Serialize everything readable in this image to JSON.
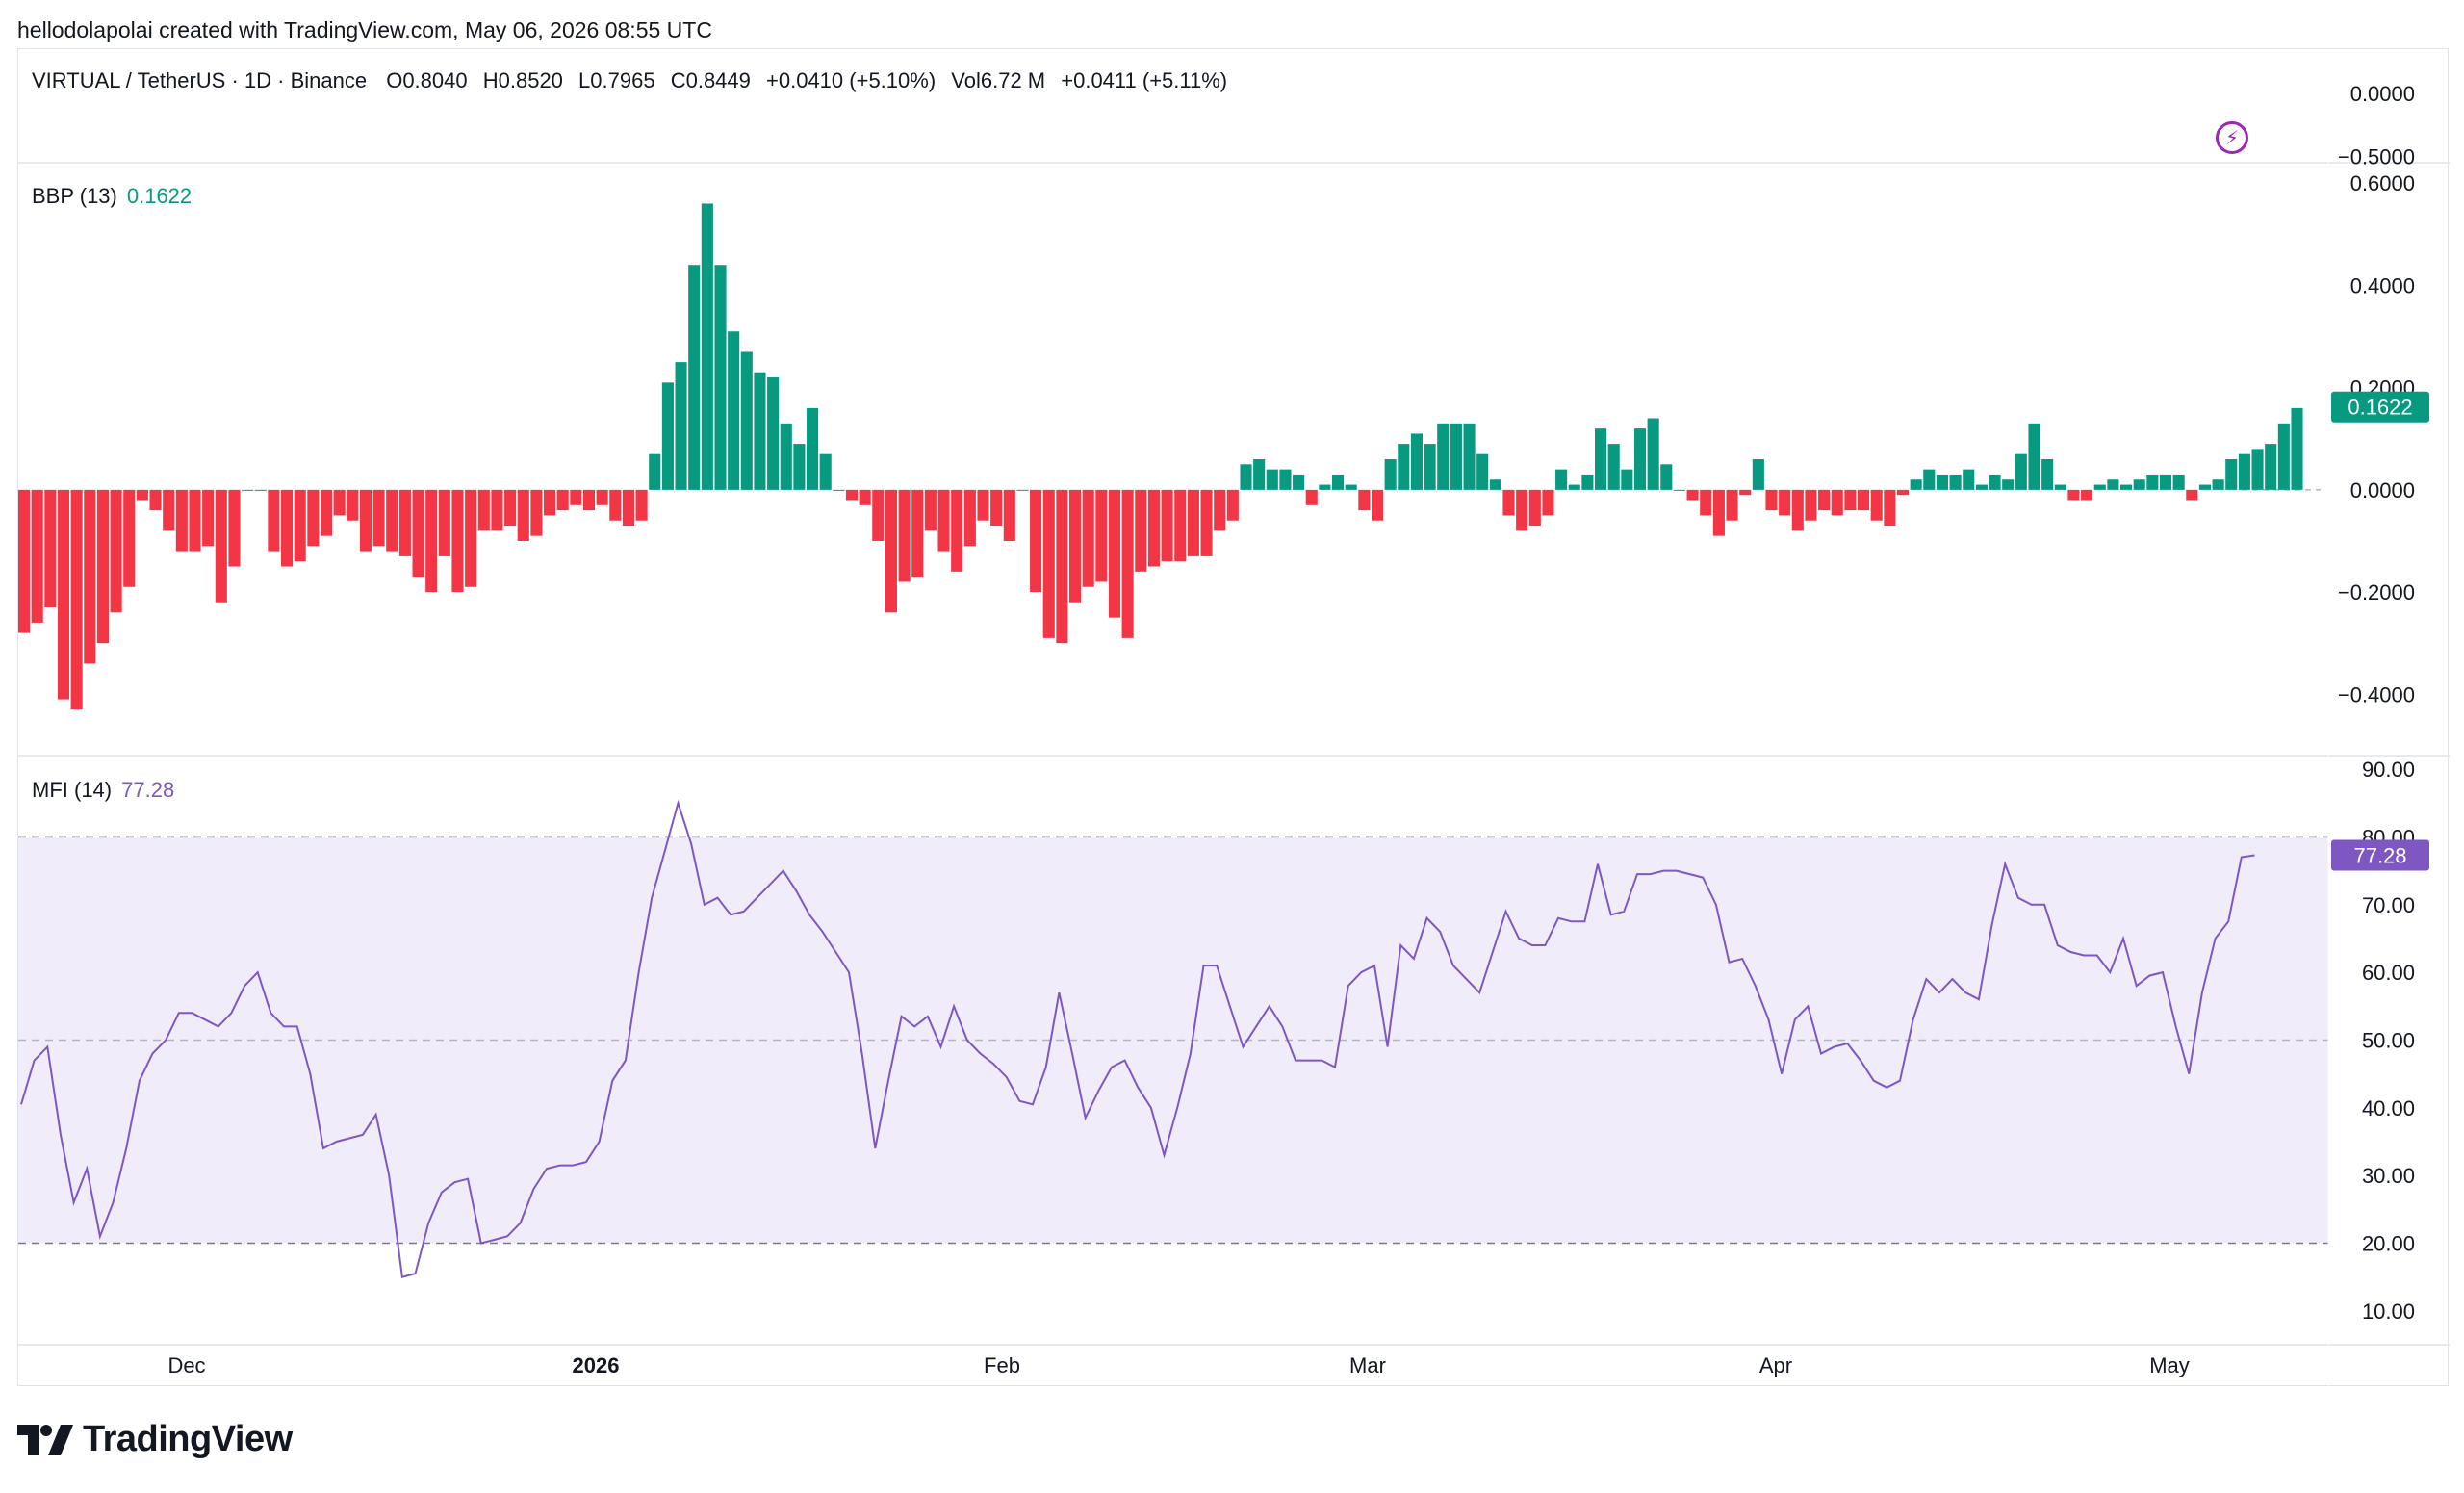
{
  "attribution": "hellodolapolai created with TradingView.com, May 06, 2026 08:55 UTC",
  "brand": "TradingView",
  "header": {
    "symbol": "VIRTUAL / TetherUS · 1D · Binance",
    "open": "O0.8040",
    "high": "H0.8520",
    "low": "L0.7965",
    "close": "C0.8449",
    "change": "+0.0410 (+5.10%)",
    "volume": "Vol6.72 M",
    "vol_change": "+0.0411 (+5.11%)"
  },
  "colors": {
    "up": "#089981",
    "down": "#f23645",
    "mfi_line": "#7e57c2",
    "mfi_band": "#f0ecf9",
    "grid_dash": "#b2b5be",
    "text": "#131722",
    "accent_purple": "#9c27b0"
  },
  "chart_data": [
    {
      "type": "line",
      "pane": "price",
      "title": "VIRTUAL / TetherUS · 1D · Binance",
      "y_ticks": [
        "0.0000",
        "−0.5000"
      ],
      "ylim": [
        -0.55,
        0.35
      ]
    },
    {
      "type": "bar",
      "pane": "BBP",
      "title": "BBP (13)",
      "last_value": "0.1622",
      "last_value_label": "0.1622",
      "y_ticks": [
        "0.6000",
        "0.4000",
        "0.2000",
        "0.0000",
        "−0.2000",
        "−0.4000"
      ],
      "ylim": [
        -0.52,
        0.64
      ],
      "values": [
        -0.28,
        -0.26,
        -0.23,
        -0.41,
        -0.43,
        -0.34,
        -0.3,
        -0.24,
        -0.19,
        -0.02,
        -0.04,
        -0.08,
        -0.12,
        -0.12,
        -0.11,
        -0.22,
        -0.15,
        0.0,
        0.0,
        -0.12,
        -0.15,
        -0.14,
        -0.11,
        -0.09,
        -0.05,
        -0.06,
        -0.12,
        -0.11,
        -0.12,
        -0.13,
        -0.17,
        -0.2,
        -0.13,
        -0.2,
        -0.19,
        -0.08,
        -0.08,
        -0.07,
        -0.1,
        -0.09,
        -0.05,
        -0.04,
        -0.03,
        -0.04,
        -0.03,
        -0.06,
        -0.07,
        -0.06,
        0.07,
        0.21,
        0.25,
        0.44,
        0.56,
        0.44,
        0.31,
        0.27,
        0.23,
        0.22,
        0.13,
        0.09,
        0.16,
        0.07,
        0.0,
        -0.02,
        -0.03,
        -0.1,
        -0.24,
        -0.18,
        -0.17,
        -0.08,
        -0.12,
        -0.16,
        -0.11,
        -0.06,
        -0.07,
        -0.1,
        0.0,
        -0.2,
        -0.29,
        -0.3,
        -0.22,
        -0.19,
        -0.18,
        -0.25,
        -0.29,
        -0.16,
        -0.15,
        -0.14,
        -0.14,
        -0.13,
        -0.13,
        -0.08,
        -0.06,
        0.05,
        0.06,
        0.04,
        0.04,
        0.03,
        -0.03,
        0.01,
        0.03,
        0.01,
        -0.04,
        -0.06,
        0.06,
        0.09,
        0.11,
        0.09,
        0.13,
        0.13,
        0.13,
        0.07,
        0.02,
        -0.05,
        -0.08,
        -0.07,
        -0.05,
        0.04,
        0.01,
        0.03,
        0.12,
        0.09,
        0.04,
        0.12,
        0.14,
        0.05,
        0.0,
        -0.02,
        -0.05,
        -0.09,
        -0.06,
        -0.01,
        0.06,
        -0.04,
        -0.05,
        -0.08,
        -0.06,
        -0.04,
        -0.05,
        -0.04,
        -0.04,
        -0.06,
        -0.07,
        -0.01,
        0.02,
        0.04,
        0.03,
        0.03,
        0.04,
        0.01,
        0.03,
        0.02,
        0.07,
        0.13,
        0.06,
        0.01,
        -0.02,
        -0.02,
        0.01,
        0.02,
        0.01,
        0.02,
        0.03,
        0.03,
        0.03,
        -0.02,
        0.01,
        0.02,
        0.06,
        0.07,
        0.08,
        0.09,
        0.13,
        0.16
      ]
    },
    {
      "type": "line",
      "pane": "MFI",
      "title": "MFI (14)",
      "last_value": "77.28",
      "last_value_label": "77.28",
      "y_ticks": [
        "90.00",
        "80.00",
        "70.00",
        "60.00",
        "50.00",
        "40.00",
        "30.00",
        "20.00",
        "10.00"
      ],
      "ylim": [
        5,
        92
      ],
      "band": [
        20,
        80
      ],
      "midline": 50,
      "x_labels": [
        "Dec",
        "2026",
        "Feb",
        "Mar",
        "Apr",
        "May"
      ],
      "values": [
        40.5,
        47,
        49,
        36,
        26,
        31,
        21,
        26,
        34,
        44,
        48,
        50,
        54,
        54,
        53,
        52,
        54,
        58,
        60,
        54,
        52,
        52,
        45,
        34,
        35,
        35.5,
        36,
        39,
        30,
        15,
        15.5,
        23,
        27.5,
        29,
        29.5,
        20,
        20.5,
        21,
        23,
        28,
        31,
        31.5,
        31.5,
        32,
        35,
        44,
        47,
        60,
        71,
        78,
        85,
        79,
        70,
        71,
        68.5,
        69,
        71,
        73,
        75,
        72,
        68.5,
        66,
        63,
        60,
        48,
        34,
        44,
        53.5,
        52,
        53.5,
        49,
        55,
        50,
        48,
        46.5,
        44.5,
        41,
        40.5,
        46,
        57,
        48,
        38.5,
        42.5,
        46,
        47,
        43,
        40,
        33,
        40,
        48,
        61,
        61,
        55,
        49,
        52,
        55,
        52,
        47,
        47,
        47,
        46,
        58,
        60,
        61,
        49,
        64,
        62,
        68,
        66,
        61,
        59,
        57,
        63,
        69,
        65,
        64,
        64,
        68,
        67.5,
        67.5,
        76,
        68.5,
        69,
        74.5,
        74.5,
        75,
        75,
        74.5,
        74,
        70,
        61.5,
        62,
        58,
        53,
        45,
        53,
        55,
        48,
        49,
        49.5,
        47,
        44,
        43,
        44,
        53,
        59,
        57,
        59,
        57,
        56,
        67,
        76,
        71,
        70,
        70,
        64,
        63,
        62.5,
        62.5,
        60,
        65,
        58,
        59.5,
        60,
        52,
        45,
        57,
        65,
        67.5,
        77,
        77.28
      ]
    }
  ]
}
